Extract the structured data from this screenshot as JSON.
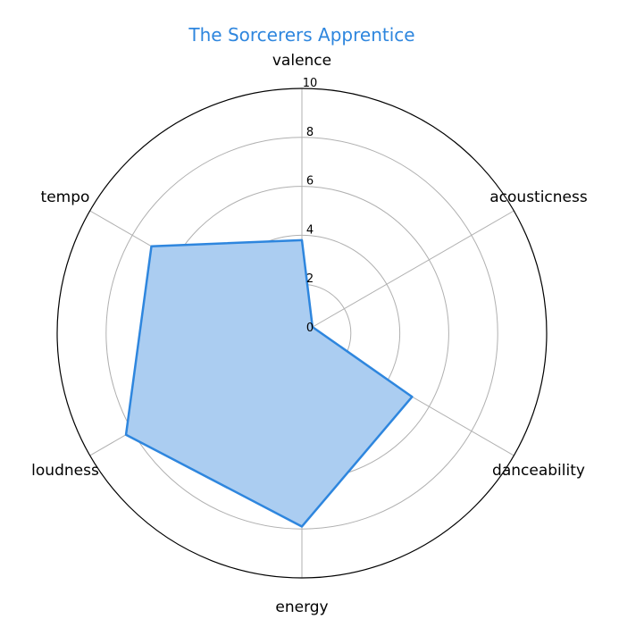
{
  "chart_data": {
    "type": "radar",
    "title": "The Sorcerers Apprentice",
    "axes": [
      "valence",
      "acousticness",
      "danceability",
      "energy",
      "loudness",
      "tempo"
    ],
    "series": [
      {
        "values": [
          3.8,
          0.5,
          5.2,
          7.9,
          8.3,
          7.1
        ]
      }
    ],
    "rlim": [
      0,
      10
    ],
    "rticks": [
      0,
      2,
      4,
      6,
      8,
      10
    ],
    "grid": true,
    "colors": {
      "line": "#2e86de",
      "fill": "#abcdf1",
      "title": "#2e86de",
      "grid": "#b0b0b0",
      "frame": "#000000"
    }
  }
}
